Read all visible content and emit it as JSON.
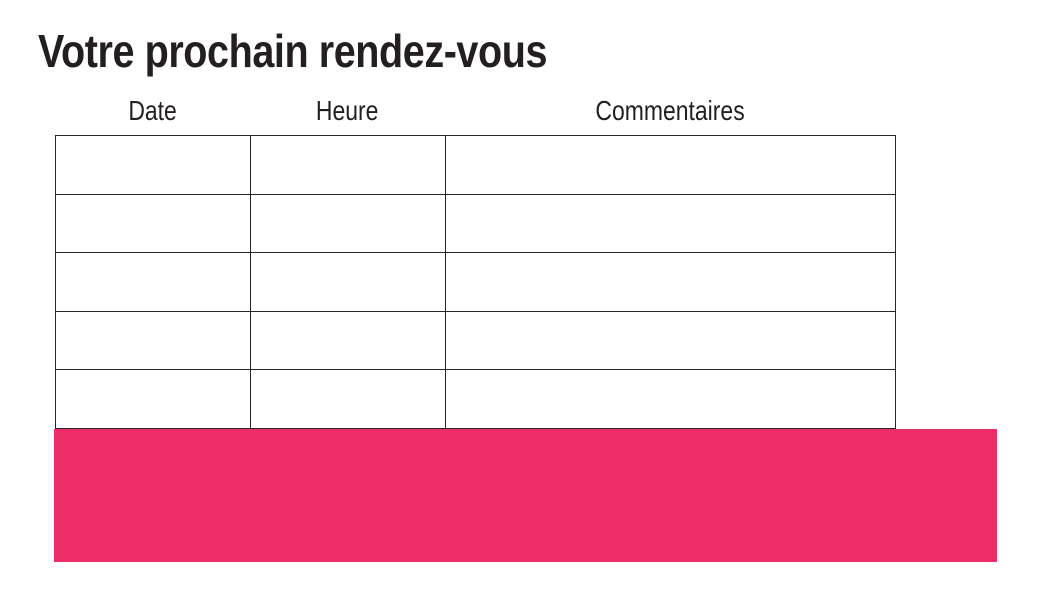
{
  "page": {
    "title": "Votre prochain rendez-vous"
  },
  "table": {
    "columns": [
      {
        "label": "Date"
      },
      {
        "label": "Heure"
      },
      {
        "label": "Commentaires"
      }
    ],
    "rows": [
      [
        "",
        "",
        ""
      ],
      [
        "",
        "",
        ""
      ],
      [
        "",
        "",
        ""
      ],
      [
        "",
        "",
        ""
      ],
      [
        "",
        "",
        ""
      ]
    ]
  },
  "banner": {
    "color": "#ED2E68"
  },
  "colors": {
    "text": "#231F20",
    "table_border": "#2A2627",
    "accent_pink": "#ED2E68",
    "background": "#FFFFFF"
  }
}
